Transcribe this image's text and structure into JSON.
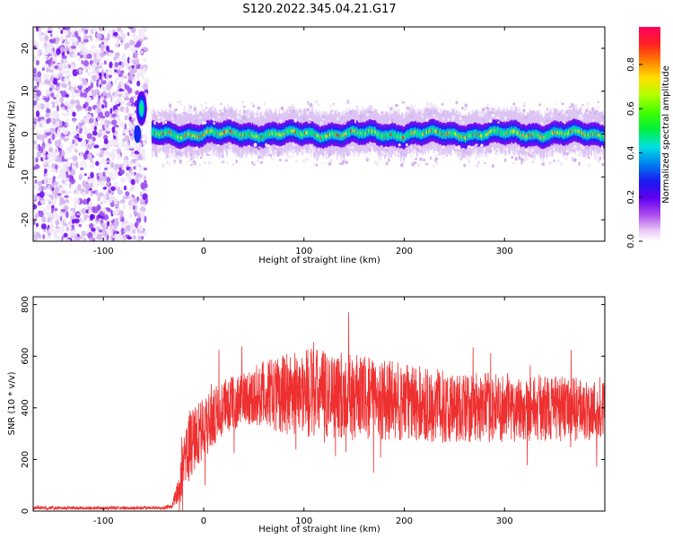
{
  "title": "S120.2022.345.04.21.G17",
  "chart_data": [
    {
      "type": "heatmap",
      "xlabel": "Height of straight line (km)",
      "ylabel": "Frequency (Hz)",
      "xlim": [
        -170,
        400
      ],
      "ylim": [
        -25,
        25
      ],
      "xticks": [
        -100,
        0,
        100,
        200,
        300
      ],
      "yticks": [
        -20,
        -10,
        0,
        10,
        20
      ],
      "colorbar": {
        "label": "Normalized spectral amplitude",
        "range": [
          0,
          0.97
        ],
        "ticks": [
          0.0,
          0.2,
          0.4,
          0.6,
          0.8
        ]
      },
      "noise_region_x": [
        -170,
        -65
      ],
      "peak": {
        "x": -62,
        "y": 6
      },
      "ridge_start_x": -52,
      "ridge_center_y": 0,
      "ridge_halfwidth_hz": 2.5,
      "colors": [
        "#f0e6f8",
        "#d4b4f0",
        "#9b4cf0",
        "#6a00f0",
        "#1428f0",
        "#00c8f0",
        "#00f080",
        "#60ff00",
        "#ffe800",
        "#ff2040"
      ]
    },
    {
      "type": "line",
      "xlabel": "Height of straight line (km)",
      "ylabel": "SNR (10 * v/v)",
      "xlim": [
        -170,
        400
      ],
      "ylim": [
        0,
        830
      ],
      "xticks": [
        -100,
        0,
        100,
        200,
        300
      ],
      "yticks": [
        0,
        200,
        400,
        600,
        800
      ],
      "color": "#ee3030",
      "profile": [
        {
          "x": -170,
          "mean": 12,
          "spread": 6
        },
        {
          "x": -40,
          "mean": 12,
          "spread": 6
        },
        {
          "x": -32,
          "mean": 20,
          "spread": 10
        },
        {
          "x": -25,
          "mean": 80,
          "spread": 60
        },
        {
          "x": -15,
          "mean": 250,
          "spread": 150
        },
        {
          "x": 0,
          "mean": 320,
          "spread": 120
        },
        {
          "x": 20,
          "mean": 400,
          "spread": 110
        },
        {
          "x": 40,
          "mean": 440,
          "spread": 100
        },
        {
          "x": 60,
          "mean": 450,
          "spread": 130
        },
        {
          "x": 100,
          "mean": 460,
          "spread": 180
        },
        {
          "x": 160,
          "mean": 440,
          "spread": 160
        },
        {
          "x": 250,
          "mean": 400,
          "spread": 140
        },
        {
          "x": 330,
          "mean": 400,
          "spread": 130
        },
        {
          "x": 400,
          "mean": 390,
          "spread": 120
        }
      ]
    }
  ]
}
